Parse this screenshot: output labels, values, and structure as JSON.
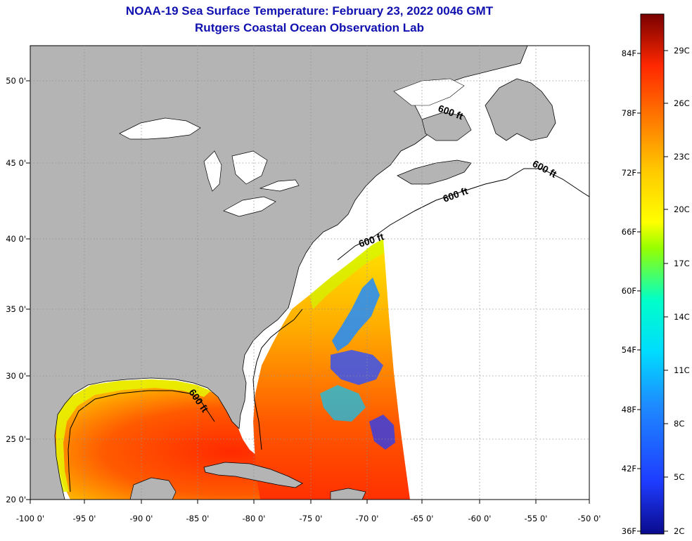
{
  "header": {
    "title_line1": "NOAA-19 Sea Surface Temperature:  February 23, 2022 0046 GMT",
    "title_line2": "Rutgers Coastal Ocean Observation Lab"
  },
  "map": {
    "longitude_labels": [
      "-100 0'",
      "-95 0'",
      "-90 0'",
      "-85 0'",
      "-80 0'",
      "-75 0'",
      "-70 0'",
      "-65 0'",
      "-60 0'",
      "-55 0'",
      "-50 0'"
    ],
    "latitude_labels": [
      "20 0'",
      "25 0'",
      "30 0'",
      "35 0'",
      "40 0'",
      "45 0'",
      "50 0'"
    ],
    "contour_label": "600 ft",
    "colors": {
      "land": "#b4b4b4",
      "no_data": "#ffffff",
      "coastline": "#000000",
      "graticule": "#909090"
    }
  },
  "colorbar": {
    "fahrenheit_labels": [
      "84F",
      "78F",
      "72F",
      "66F",
      "60F",
      "54F",
      "48F",
      "42F",
      "36F"
    ],
    "celsius_labels": [
      "29C",
      "26C",
      "23C",
      "20C",
      "17C",
      "14C",
      "11C",
      "8C",
      "5C",
      "2C"
    ],
    "range_celsius": [
      2,
      31
    ],
    "colors": [
      "#0a0a8c",
      "#1e3cff",
      "#1e8cff",
      "#00dcff",
      "#00ffc8",
      "#96ff00",
      "#ffff00",
      "#ffc800",
      "#ff7800",
      "#ff2800",
      "#c80000",
      "#780000"
    ]
  }
}
